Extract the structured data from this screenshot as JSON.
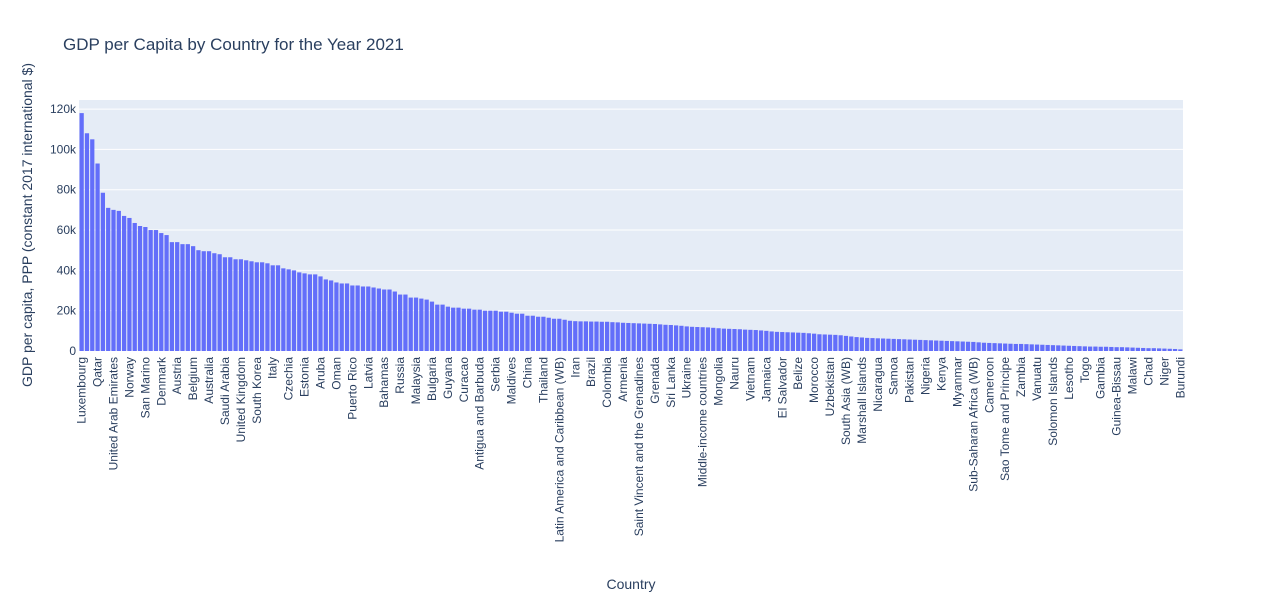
{
  "chart_data": {
    "type": "bar",
    "title": "GDP per Capita by Country for the Year 2021",
    "x_label": "Country",
    "y_label": "GDP per capita, PPP (constant 2017 international $)",
    "color": "#636efa",
    "grid": true,
    "ylim": [
      0,
      124500
    ],
    "yticks": [
      0,
      {
        "value": 20000,
        "label": "20k"
      },
      {
        "value": 40000,
        "label": "40k"
      },
      {
        "value": 60000,
        "label": "60k"
      },
      {
        "value": 80000,
        "label": "80k"
      },
      {
        "value": 100000,
        "label": "100k"
      },
      {
        "value": 120000,
        "label": "120k"
      }
    ],
    "categories": [
      "Luxembourg",
      null,
      null,
      "Qatar",
      null,
      null,
      "United Arab Emirates",
      null,
      null,
      "Norway",
      null,
      null,
      "San Marino",
      null,
      null,
      "Denmark",
      null,
      null,
      "Austria",
      null,
      null,
      "Belgium",
      null,
      null,
      "Australia",
      null,
      null,
      "Saudi Arabia",
      null,
      null,
      "United Kingdom",
      null,
      null,
      "South Korea",
      null,
      null,
      "Italy",
      null,
      null,
      "Czechia",
      null,
      null,
      "Estonia",
      null,
      null,
      "Aruba",
      null,
      null,
      "Oman",
      null,
      null,
      "Puerto Rico",
      null,
      null,
      "Latvia",
      null,
      null,
      "Bahamas",
      null,
      null,
      "Russia",
      null,
      null,
      "Malaysia",
      null,
      null,
      "Bulgaria",
      null,
      null,
      "Guyana",
      null,
      null,
      "Curacao",
      null,
      null,
      "Antigua and Barbuda",
      null,
      null,
      "Serbia",
      null,
      null,
      "Maldives",
      null,
      null,
      "China",
      null,
      null,
      "Thailand",
      null,
      null,
      "Latin America and Caribbean (WB)",
      null,
      null,
      "Iran",
      null,
      null,
      "Brazil",
      null,
      null,
      "Colombia",
      null,
      null,
      "Armenia",
      null,
      null,
      "Saint Vincent and the Grenadines",
      null,
      null,
      "Grenada",
      null,
      null,
      "Sri Lanka",
      null,
      null,
      "Ukraine",
      null,
      null,
      "Middle-income countries",
      null,
      null,
      "Mongolia",
      null,
      null,
      "Nauru",
      null,
      null,
      "Vietnam",
      null,
      null,
      "Jamaica",
      null,
      null,
      "El Salvador",
      null,
      null,
      "Belize",
      null,
      null,
      "Morocco",
      null,
      null,
      "Uzbekistan",
      null,
      null,
      "South Asia (WB)",
      null,
      null,
      "Marshall Islands",
      null,
      null,
      "Nicaragua",
      null,
      null,
      "Samoa",
      null,
      null,
      "Pakistan",
      null,
      null,
      "Nigeria",
      null,
      null,
      "Kenya",
      null,
      null,
      "Myanmar",
      null,
      null,
      "Sub-Saharan Africa (WB)",
      null,
      null,
      "Cameroon",
      null,
      null,
      "Sao Tome and Principe",
      null,
      null,
      "Zambia",
      null,
      null,
      "Vanuatu",
      null,
      null,
      "Solomon Islands",
      null,
      null,
      "Lesotho",
      null,
      null,
      "Togo",
      null,
      null,
      "Gambia",
      null,
      null,
      "Guinea-Bissau",
      null,
      null,
      "Malawi",
      null,
      null,
      "Chad",
      null,
      null,
      "Niger",
      null,
      null,
      "Burundi"
    ],
    "values": [
      118000,
      108000,
      105000,
      93000,
      78500,
      71000,
      70000,
      69500,
      67000,
      66000,
      63500,
      62000,
      61500,
      60000,
      60000,
      58500,
      57500,
      54000,
      54000,
      53000,
      53000,
      52000,
      50000,
      49500,
      49500,
      48500,
      48000,
      46500,
      46500,
      45500,
      45500,
      45000,
      44500,
      44000,
      44000,
      43500,
      42500,
      42500,
      41000,
      40500,
      40000,
      39000,
      38500,
      38000,
      38000,
      37000,
      35500,
      35000,
      34000,
      33500,
      33500,
      32500,
      32500,
      32000,
      32000,
      31500,
      31000,
      30500,
      30500,
      29500,
      28000,
      28000,
      26500,
      26500,
      26000,
      25500,
      24500,
      23000,
      23000,
      22000,
      21500,
      21500,
      21000,
      21000,
      20500,
      20500,
      20000,
      20000,
      20000,
      19500,
      19500,
      19000,
      18500,
      18500,
      17500,
      17500,
      17000,
      17000,
      16500,
      16000,
      16000,
      15500,
      15000,
      14800,
      14700,
      14700,
      14600,
      14600,
      14500,
      14500,
      14300,
      14200,
      14000,
      13900,
      13800,
      13700,
      13600,
      13500,
      13400,
      13200,
      13000,
      12900,
      12700,
      12500,
      12200,
      12000,
      11900,
      11800,
      11700,
      11500,
      11300,
      11100,
      11000,
      10900,
      10800,
      10600,
      10500,
      10400,
      10200,
      10000,
      9700,
      9500,
      9400,
      9300,
      9200,
      9100,
      9000,
      8800,
      8600,
      8300,
      8200,
      8100,
      8000,
      7800,
      7500,
      7200,
      6900,
      6700,
      6500,
      6400,
      6300,
      6200,
      6100,
      6000,
      5900,
      5800,
      5700,
      5600,
      5500,
      5400,
      5300,
      5200,
      5100,
      5000,
      4900,
      4800,
      4700,
      4600,
      4500,
      4300,
      4100,
      4000,
      3900,
      3800,
      3700,
      3600,
      3500,
      3500,
      3400,
      3300,
      3200,
      3100,
      3000,
      2900,
      2800,
      2700,
      2600,
      2500,
      2400,
      2300,
      2200,
      2200,
      2100,
      2100,
      2000,
      1900,
      1900,
      1800,
      1700,
      1600,
      1500,
      1400,
      1400,
      1300,
      1200,
      1100,
      1000,
      800
    ]
  }
}
